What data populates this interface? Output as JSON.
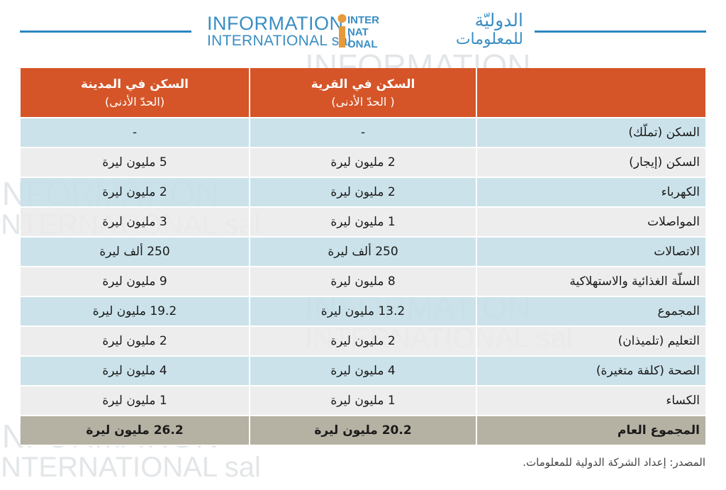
{
  "logo": {
    "latin_line1": "INFORMATION",
    "latin_line2": "INTERNATIONAL sal",
    "mark_lines": [
      "INTER",
      "NAT",
      "ONAL"
    ],
    "arabic_line1": "الدوليّة",
    "arabic_line2": "للمعلومات",
    "color": "#3a8ec3"
  },
  "table": {
    "header": {
      "item": "",
      "village_title": "السكن في القرية",
      "village_note": "( الحدّ الأدنى)",
      "city_title": "السكن في المدينة",
      "city_note": "(الحدّ الأدنى)",
      "color": "#d55528"
    },
    "rows": [
      {
        "item": "السكن (تملّك)",
        "village": "-",
        "city": "-"
      },
      {
        "item": "السكن (إيجار)",
        "village": "2 مليون ليرة",
        "city": "5 مليون ليرة"
      },
      {
        "item": "الكهرباء",
        "village": "2 مليون ليرة",
        "city": "2 مليون ليرة"
      },
      {
        "item": "المواصلات",
        "village": "1 مليون ليرة",
        "city": "3 مليون ليرة"
      },
      {
        "item": "الاتصالات",
        "village": "250 ألف ليرة",
        "city": "250 ألف ليرة"
      },
      {
        "item": "السلّة الغذائية والاستهلاكية",
        "village": "8 مليون ليرة",
        "city": "9 مليون ليرة"
      },
      {
        "item": "المجموع",
        "village": "13.2 مليون ليرة",
        "city": "19.2 مليون ليرة"
      },
      {
        "item": "التعليم (تلميذان)",
        "village": "2 مليون ليرة",
        "city": "2 مليون ليرة"
      },
      {
        "item": "الصحة (كلفة متغيرة)",
        "village": "4 مليون ليرة",
        "city": "4 مليون ليرة"
      },
      {
        "item": "الكساء",
        "village": "1 مليون ليرة",
        "city": "1 مليون ليرة"
      }
    ],
    "total": {
      "item": "المجموع العام",
      "village": "20.2 مليون ليرة",
      "city": "26.2 مليون ليرة"
    }
  },
  "source": "المصدر: إعداد الشركة الدولية للمعلومات.",
  "colors": {
    "row_blue": "#c7e0e8",
    "row_grey": "#eaeaea",
    "total_row": "#b5b1a3",
    "accent_line": "#2b86c0"
  }
}
